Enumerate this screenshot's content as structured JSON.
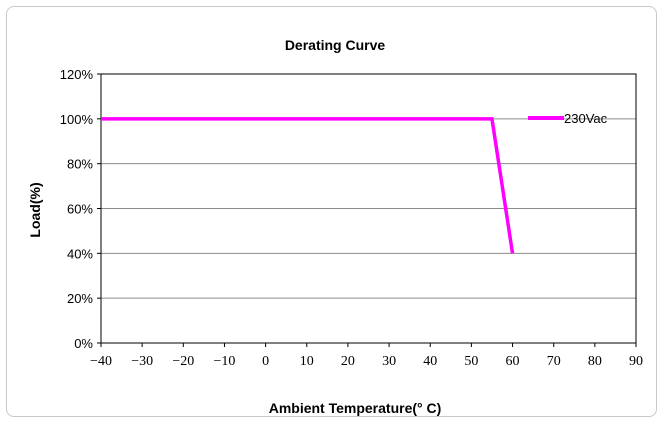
{
  "chart_data": {
    "type": "line",
    "title": "Derating Curve",
    "xlabel": "Ambient Temperature(° C)",
    "ylabel": "Load(%)",
    "xlim": [
      -40,
      90
    ],
    "ylim": [
      0,
      120
    ],
    "x_ticks": [
      -40,
      -30,
      -20,
      -10,
      0,
      10,
      20,
      30,
      40,
      50,
      60,
      70,
      80,
      90
    ],
    "x_tick_labels": [
      "−40",
      "−30",
      "−20",
      "−10",
      "0",
      "10",
      "20",
      "30",
      "40",
      "50",
      "60",
      "70",
      "80",
      "90"
    ],
    "y_ticks": [
      0,
      20,
      40,
      60,
      80,
      100,
      120
    ],
    "y_tick_labels": [
      "0%",
      "20%",
      "40%",
      "60%",
      "80%",
      "100%",
      "120%"
    ],
    "grid": "horizontal",
    "legend_position": "right",
    "series": [
      {
        "name": "230Vac",
        "color": "#ff00ff",
        "points": [
          [
            -40,
            100
          ],
          [
            55,
            100
          ],
          [
            60,
            40
          ]
        ]
      }
    ]
  }
}
